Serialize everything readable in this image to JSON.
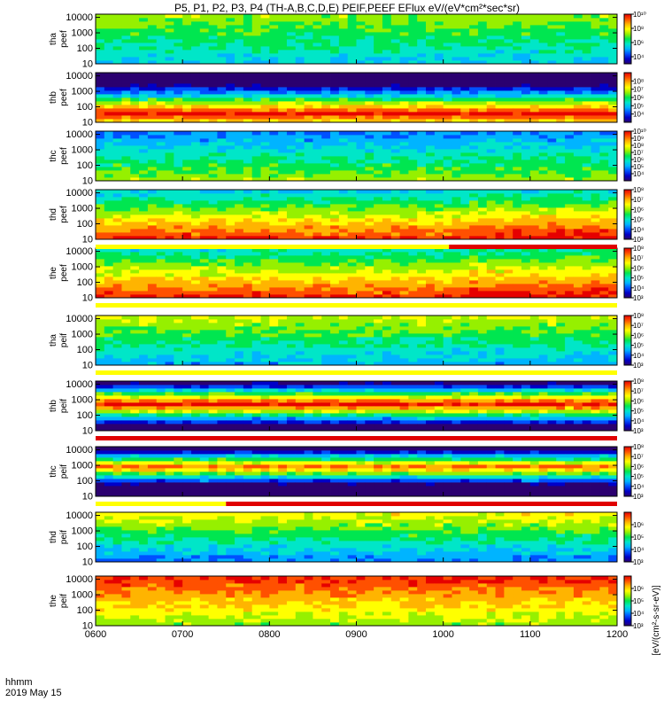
{
  "title": "P5, P1, P2, P3, P4 (TH-A,B,C,D,E) PEIF,PEEF EFlux eV/(eV*cm²*sec*sr)",
  "footer": {
    "time_unit": "hhmm",
    "date": "2019 May 15"
  },
  "colorbar_units_label": "[eV/(cm²-s-sr-eV)]",
  "colors": {
    "spectral_scale": [
      "#2b0070",
      "#0000c8",
      "#0050ff",
      "#00b4ff",
      "#00e6c8",
      "#00e650",
      "#96f000",
      "#ffff00",
      "#ffb400",
      "#ff5000",
      "#e60000"
    ],
    "flag_red": "#e00000",
    "flag_yellow": "#ffff00",
    "axis": "#000000"
  },
  "chart_data": {
    "type": "heatmap",
    "x_axis": {
      "ticks": [
        "0600",
        "0700",
        "0800",
        "0900",
        "1000",
        "1100",
        "1200"
      ]
    },
    "y_scale": "log",
    "y_ticks": [
      "10",
      "100",
      "1000",
      "10000"
    ],
    "panels": [
      {
        "probe": "tha",
        "product": "peef",
        "label_top": "tha",
        "label_bottom": "peef",
        "cbar_ticks": [
          "10^4",
          "10^6",
          "10^8",
          "10^10"
        ],
        "cbar_range": [
          3,
          10
        ]
      },
      {
        "probe": "thb",
        "product": "peef",
        "label_top": "thb",
        "label_bottom": "peef",
        "cbar_ticks": [
          "10^4",
          "10^5",
          "10^6",
          "10^7",
          "10^8"
        ],
        "cbar_range": [
          3,
          9
        ]
      },
      {
        "probe": "thc",
        "product": "peef",
        "label_top": "thc",
        "label_bottom": "peef",
        "cbar_ticks": [
          "10^4",
          "10^5",
          "10^6",
          "10^7",
          "10^8",
          "10^9",
          "10^10"
        ],
        "cbar_range": [
          3,
          10
        ]
      },
      {
        "probe": "thd",
        "product": "peef",
        "label_top": "thd",
        "label_bottom": "peef",
        "cbar_ticks": [
          "10^3",
          "10^4",
          "10^5",
          "10^6",
          "10^7",
          "10^8"
        ],
        "cbar_range": [
          3,
          8
        ]
      },
      {
        "probe": "the",
        "product": "peef",
        "label_top": "the",
        "label_bottom": "peef",
        "cbar_ticks": [
          "10^3",
          "10^4",
          "10^5",
          "10^6",
          "10^7",
          "10^8"
        ],
        "cbar_range": [
          3,
          8
        ]
      },
      {
        "probe": "tha",
        "product": "peif",
        "label_top": "tha",
        "label_bottom": "peif",
        "cbar_ticks": [
          "10^3",
          "10^4",
          "10^5",
          "10^6",
          "10^7",
          "10^8"
        ],
        "cbar_range": [
          3,
          8
        ]
      },
      {
        "probe": "thb",
        "product": "peif",
        "label_top": "thb",
        "label_bottom": "peif",
        "cbar_ticks": [
          "10^3",
          "10^4",
          "10^5",
          "10^6",
          "10^7",
          "10^8"
        ],
        "cbar_range": [
          3,
          8
        ]
      },
      {
        "probe": "thc",
        "product": "peif",
        "label_top": "thc",
        "label_bottom": "peif",
        "cbar_ticks": [
          "10^3",
          "10^4",
          "10^5",
          "10^6",
          "10^7",
          "10^8"
        ],
        "cbar_range": [
          3,
          8
        ]
      },
      {
        "probe": "thd",
        "product": "peif",
        "label_top": "thd",
        "label_bottom": "peif",
        "cbar_ticks": [
          "10^3",
          "10^4",
          "10^5",
          "10^6"
        ],
        "cbar_range": [
          3,
          7
        ]
      },
      {
        "probe": "the",
        "product": "peif",
        "label_top": "the",
        "label_bottom": "peif",
        "cbar_ticks": [
          "10^3",
          "10^4",
          "10^5",
          "10^6"
        ],
        "cbar_range": [
          3,
          7
        ]
      }
    ],
    "flag_bars": [
      {
        "after_panel": 4,
        "segments": [
          {
            "from": "0600",
            "to": "1004",
            "color": "yellow"
          },
          {
            "from": "1004",
            "to": "1200",
            "color": "red"
          }
        ]
      },
      {
        "after_panel": 5,
        "segments": [
          {
            "from": "0600",
            "to": "1200",
            "color": "yellow"
          }
        ]
      },
      {
        "after_panel": 6,
        "segments": [
          {
            "from": "0600",
            "to": "1200",
            "color": "yellow"
          }
        ]
      },
      {
        "after_panel": 7,
        "segments": [
          {
            "from": "0600",
            "to": "1200",
            "color": "red"
          }
        ]
      },
      {
        "after_panel": 8,
        "segments": [
          {
            "from": "0600",
            "to": "0730",
            "color": "yellow"
          },
          {
            "from": "0730",
            "to": "1200",
            "color": "red"
          }
        ]
      }
    ]
  }
}
